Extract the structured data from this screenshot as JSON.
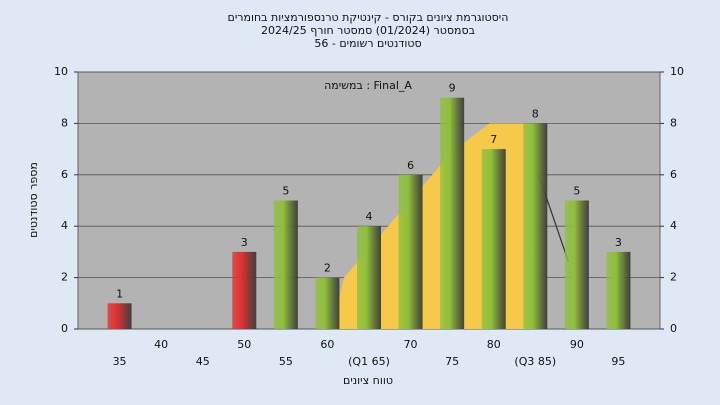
{
  "chart_data": {
    "type": "bar",
    "title": [
      "היסטוגרמת ציונים בקורס - קינטיקת טרנספורמציות בחומרים",
      "בסמסטר  (01/2024)  סמסטר חורף 2024/25",
      "סטודנטים רשומים - 56"
    ],
    "annotation": "במשימה : Final_A",
    "xlabel": "טווח ציונים",
    "ylabel": "מספר סטודנטים",
    "categories": [
      "35",
      "40",
      "45",
      "50",
      "55",
      "60",
      "(Q1 65)",
      "70",
      "75",
      "80",
      "(Q3 85)",
      "90",
      "95"
    ],
    "values": [
      1,
      0,
      0,
      3,
      5,
      2,
      4,
      6,
      9,
      7,
      8,
      5,
      3
    ],
    "colors": [
      "#e03030",
      "#e03030",
      "#e03030",
      "#e03030",
      "#8fbf3a",
      "#8fbf3a",
      "#8fbf3a",
      "#8fbf3a",
      "#8fbf3a",
      "#8fbf3a",
      "#8fbf3a",
      "#8fbf3a",
      "#8fbf3a"
    ],
    "area": {
      "x": [
        60.5,
        62,
        75,
        79.5,
        85.5,
        85.5
      ],
      "values": [
        0,
        2,
        6.9,
        8,
        8,
        0
      ],
      "color": "#f6c94a"
    },
    "line": {
      "x": [
        85.2,
        89
      ],
      "values": [
        6.2,
        2.6
      ],
      "color": "#333333"
    },
    "ylim": [
      0,
      10
    ],
    "yticks": [
      0,
      2,
      4,
      6,
      8,
      10
    ],
    "y2lim": [
      0,
      10
    ],
    "y2ticks": [
      0,
      2,
      4,
      6,
      8,
      10
    ],
    "plot_background": "#b3b3b3",
    "grid": true
  }
}
